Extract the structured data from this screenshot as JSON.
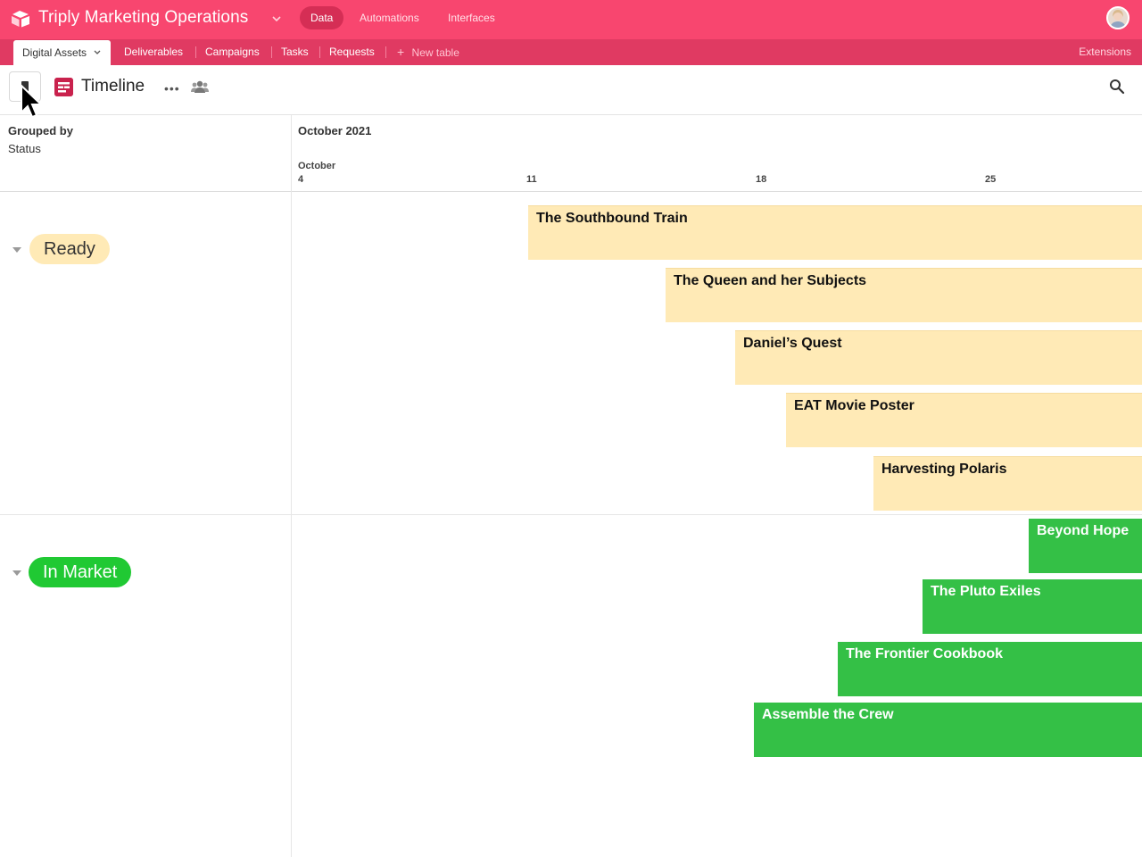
{
  "app": {
    "base_title": "Triply Marketing Operations",
    "nav": [
      "Data",
      "Automations",
      "Interfaces"
    ]
  },
  "tabs": {
    "items": [
      "Digital Assets",
      "Deliverables",
      "Campaigns",
      "Tasks",
      "Requests"
    ],
    "new_table": "New table",
    "extensions": "Extensions"
  },
  "view": {
    "title": "Timeline",
    "more": "•••"
  },
  "header": {
    "grouped_by_label": "Grouped by",
    "grouped_by_value": "Status",
    "month": "October 2021",
    "week_month": "October",
    "weeks": [
      "4",
      "11",
      "18",
      "25"
    ]
  },
  "groups": [
    {
      "status": "Ready",
      "color": "#ffeab6",
      "records": [
        "The Southbound Train",
        "The Queen and her Subjects",
        "Daniel’s Quest",
        "EAT Movie Poster",
        "Harvesting Polaris"
      ]
    },
    {
      "status": "In Market",
      "color": "#20c933",
      "records": [
        "Beyond Hope",
        "The Pluto Exiles",
        "The Frontier Cookbook",
        "Assemble the Crew"
      ]
    }
  ],
  "colors": {
    "topbar": "#f8466f",
    "tabbar": "#e03a62",
    "view_icon": "#c9224d"
  }
}
